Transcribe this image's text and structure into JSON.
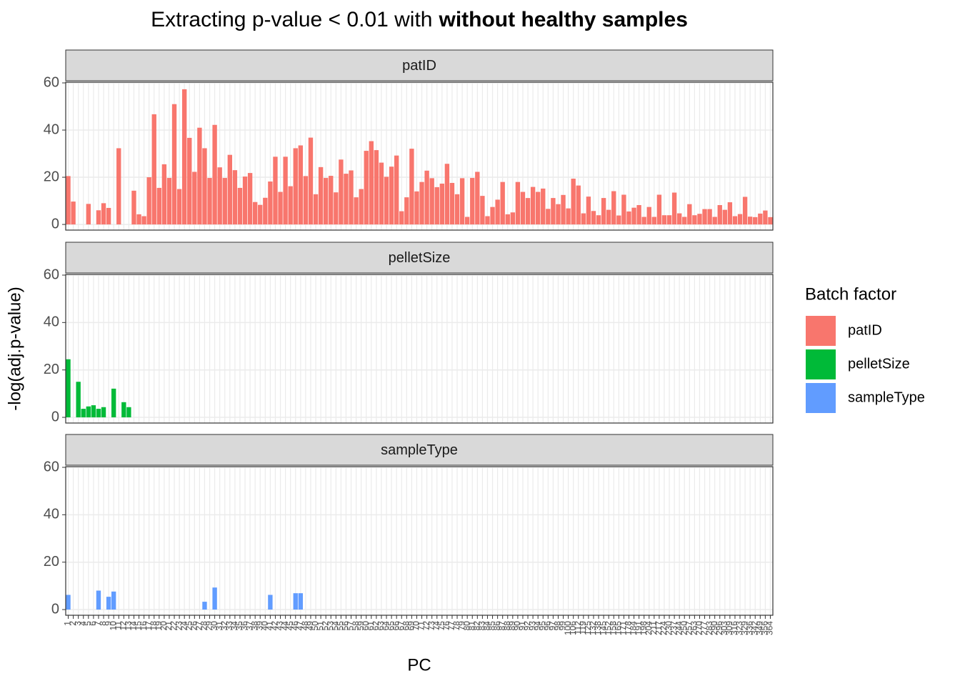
{
  "chart_data": {
    "type": "bar",
    "title": "Extracting p-value < 0.01 with",
    "title_bold": "without healthy samples",
    "x_label": "PC",
    "y_label": "-log(adj.p-value)",
    "legend_title": "Batch factor",
    "legend_position": "right",
    "grid": true,
    "ylim": [
      -2.4,
      60.3
    ],
    "yticks": [
      0,
      20,
      40,
      60
    ],
    "categories": [
      "1",
      "2",
      "3",
      "4",
      "5",
      "6",
      "7",
      "8",
      "9",
      "10",
      "11",
      "12",
      "13",
      "14",
      "15",
      "16",
      "17",
      "18",
      "19",
      "20",
      "21",
      "22",
      "23",
      "24",
      "25",
      "26",
      "27",
      "28",
      "29",
      "30",
      "31",
      "32",
      "33",
      "34",
      "35",
      "36",
      "37",
      "38",
      "39",
      "40",
      "41",
      "42",
      "43",
      "44",
      "45",
      "46",
      "47",
      "48",
      "49",
      "50",
      "51",
      "52",
      "53",
      "54",
      "55",
      "56",
      "57",
      "58",
      "59",
      "60",
      "61",
      "62",
      "63",
      "64",
      "65",
      "66",
      "67",
      "68",
      "69",
      "70",
      "71",
      "72",
      "73",
      "74",
      "75",
      "76",
      "77",
      "78",
      "79",
      "80",
      "81",
      "82",
      "83",
      "84",
      "85",
      "86",
      "87",
      "88",
      "89",
      "90",
      "91",
      "92",
      "93",
      "94",
      "95",
      "96",
      "97",
      "98",
      "99",
      "100",
      "106",
      "112",
      "119",
      "125",
      "132",
      "138",
      "145",
      "152",
      "158",
      "165",
      "171",
      "178",
      "184",
      "191",
      "198",
      "204",
      "211",
      "217",
      "224",
      "230",
      "237",
      "244",
      "250",
      "257",
      "263",
      "270",
      "277",
      "283",
      "290",
      "296",
      "303",
      "309",
      "316",
      "323",
      "329",
      "336",
      "342",
      "349",
      "356",
      "364"
    ],
    "series": [
      {
        "name": "patID",
        "color": "#F8766D",
        "values": [
          20.5,
          9.7,
          null,
          null,
          8.7,
          null,
          6,
          9,
          7,
          null,
          32.3,
          null,
          null,
          14.3,
          4.3,
          3.5,
          20,
          46.7,
          15.5,
          25.5,
          19.7,
          51,
          15,
          57.3,
          36.7,
          22.3,
          41,
          32.3,
          19.7,
          42.2,
          24.2,
          19.7,
          29.5,
          23,
          15.5,
          20.3,
          21.8,
          9.5,
          8.3,
          11.3,
          18.2,
          28.7,
          13.8,
          28.7,
          16.2,
          32.3,
          33.5,
          20.5,
          36.8,
          12.8,
          24.3,
          19.7,
          20.6,
          13.6,
          27.5,
          21.5,
          22.9,
          11.5,
          15,
          31.2,
          35.3,
          31.5,
          26.2,
          20.2,
          24.5,
          29.2,
          5.6,
          11.5,
          32.1,
          14,
          18,
          22.8,
          19.6,
          15.8,
          17.3,
          25.7,
          17.6,
          12.8,
          19.6,
          3.2,
          19.7,
          22.3,
          12.1,
          3.5,
          7.4,
          10.5,
          18,
          4.3,
          5.1,
          18,
          13.8,
          11.2,
          15.9,
          13.8,
          15.2,
          6.6,
          11.2,
          8.6,
          12.5,
          6.8,
          19.4,
          16.5,
          4.7,
          11.8,
          5.7,
          3.9,
          11.2,
          6.2,
          14.1,
          3.8,
          12.6,
          5.5,
          7.1,
          8.2,
          3.2,
          7.4,
          3.2,
          12.6,
          3.9,
          3.9,
          13.5,
          4.7,
          3.2,
          8.6,
          3.9,
          4.5,
          6.5,
          6.5,
          3.2,
          8.2,
          6.2,
          9.4,
          3.5,
          4.4,
          11.7,
          3.3,
          3.1,
          4.6,
          5.9,
          3.1
        ]
      },
      {
        "name": "pelletSize",
        "color": "#00BA38",
        "values": [
          24.5,
          null,
          15,
          3.6,
          4.6,
          5.1,
          3.6,
          4.3,
          null,
          12.1,
          null,
          6.4,
          4.3,
          null,
          null,
          null,
          null,
          null,
          null,
          null,
          null,
          null,
          null,
          null,
          null,
          null,
          null,
          null,
          null,
          null,
          null,
          null,
          null,
          null,
          null,
          null,
          null,
          null,
          null,
          null,
          null,
          null,
          null,
          null,
          null,
          null,
          null,
          null,
          null,
          null,
          null,
          null,
          null,
          null,
          null,
          null,
          null,
          null,
          null,
          null,
          null,
          null,
          null,
          null,
          null,
          null,
          null,
          null,
          null,
          null,
          null,
          null,
          null,
          null,
          null,
          null,
          null,
          null,
          null,
          null,
          null,
          null,
          null,
          null,
          null,
          null,
          null,
          null,
          null,
          null,
          null,
          null,
          null,
          null,
          null,
          null,
          null,
          null,
          null,
          null,
          null,
          null,
          null,
          null,
          null,
          null,
          null,
          null,
          null,
          null,
          null,
          null,
          null,
          null,
          null,
          null,
          null,
          null,
          null,
          null,
          null,
          null,
          null,
          null,
          null,
          null,
          null,
          null,
          null,
          null,
          null,
          null,
          null,
          null,
          null,
          null,
          null,
          null,
          null,
          null
        ]
      },
      {
        "name": "sampleType",
        "color": "#619CFF",
        "values": [
          6.2,
          null,
          null,
          null,
          null,
          null,
          8,
          null,
          5.4,
          7.6,
          null,
          null,
          null,
          null,
          null,
          null,
          null,
          null,
          null,
          null,
          null,
          null,
          null,
          null,
          null,
          null,
          null,
          3.3,
          null,
          9.3,
          null,
          null,
          null,
          null,
          null,
          null,
          null,
          null,
          null,
          null,
          6.2,
          null,
          null,
          null,
          null,
          6.9,
          6.9,
          null,
          null,
          null,
          null,
          null,
          null,
          null,
          null,
          null,
          null,
          null,
          null,
          null,
          null,
          null,
          null,
          null,
          null,
          null,
          null,
          null,
          null,
          null,
          null,
          null,
          null,
          null,
          null,
          null,
          null,
          null,
          null,
          null,
          null,
          null,
          null,
          null,
          null,
          null,
          null,
          null,
          null,
          null,
          null,
          null,
          null,
          null,
          null,
          null,
          null,
          null,
          null,
          null,
          null,
          null,
          null,
          null,
          null,
          null,
          null,
          null,
          null,
          null,
          null,
          null,
          null,
          null,
          null,
          null,
          null,
          null,
          null,
          null,
          null,
          null,
          null,
          null,
          null,
          null,
          null,
          null,
          null,
          null,
          null,
          null,
          null,
          null,
          null,
          null,
          null,
          null,
          null,
          null
        ]
      }
    ]
  }
}
